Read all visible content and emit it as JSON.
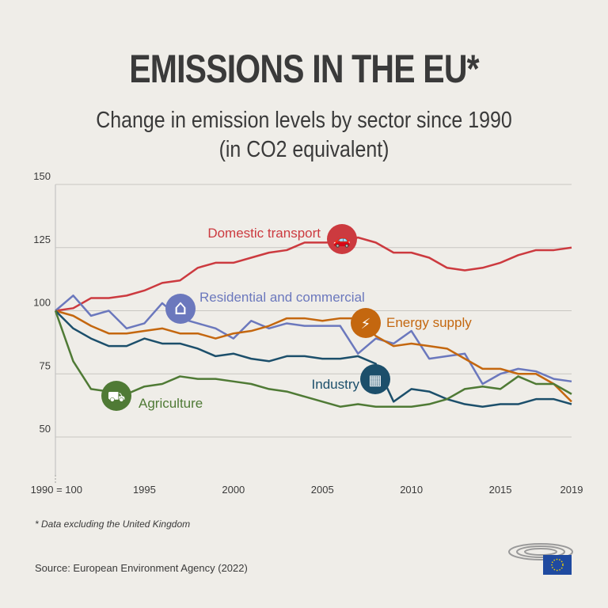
{
  "title": "EMISSIONS IN THE EU*",
  "subtitle_line1": "Change in emission levels by sector since 1990",
  "subtitle_line2": "(in CO2 equivalent)",
  "footnote": "* Data excluding the United Kingdom",
  "source": "Source: European Environment Agency (2022)",
  "chart_data": {
    "type": "line",
    "title": "",
    "xlabel": "",
    "ylabel": "",
    "ylim": [
      50,
      150
    ],
    "xlim": [
      1990,
      2019
    ],
    "grid": true,
    "y_ticks": [
      "150",
      "125",
      "100",
      "75",
      "50"
    ],
    "x_ticks": [
      "1990 = 100",
      "1995",
      "2000",
      "2005",
      "2010",
      "2015",
      "2019"
    ],
    "x": [
      1990,
      1991,
      1992,
      1993,
      1994,
      1995,
      1996,
      1997,
      1998,
      1999,
      2000,
      2001,
      2002,
      2003,
      2004,
      2005,
      2006,
      2007,
      2008,
      2009,
      2010,
      2011,
      2012,
      2013,
      2014,
      2015,
      2016,
      2017,
      2018,
      2019
    ],
    "series": [
      {
        "name": "Domestic transport",
        "color": "#cc3a3f",
        "icon": "car-icon",
        "values": [
          100,
          101,
          105,
          105,
          106,
          108,
          111,
          112,
          117,
          119,
          119,
          121,
          123,
          124,
          127,
          127,
          127,
          129,
          127,
          123,
          123,
          121,
          117,
          116,
          117,
          119,
          122,
          124,
          124,
          125
        ]
      },
      {
        "name": "Residential and commercial",
        "color": "#6b78bd",
        "icon": "house-icon",
        "values": [
          100,
          106,
          98,
          100,
          93,
          95,
          103,
          97,
          95,
          93,
          89,
          96,
          93,
          95,
          94,
          94,
          94,
          83,
          89,
          87,
          92,
          81,
          82,
          83,
          71,
          75,
          77,
          76,
          73,
          72
        ]
      },
      {
        "name": "Energy supply",
        "color": "#c4670f",
        "icon": "lightning-icon",
        "values": [
          100,
          98,
          94,
          91,
          91,
          92,
          93,
          91,
          91,
          89,
          91,
          92,
          94,
          97,
          97,
          96,
          97,
          97,
          90,
          86,
          87,
          86,
          85,
          81,
          77,
          77,
          75,
          75,
          71,
          64
        ]
      },
      {
        "name": "Industry",
        "color": "#1c4f6b",
        "icon": "factory-icon",
        "values": [
          100,
          93,
          89,
          86,
          86,
          89,
          87,
          87,
          85,
          82,
          83,
          81,
          80,
          82,
          82,
          81,
          81,
          82,
          79,
          64,
          69,
          68,
          65,
          63,
          62,
          63,
          63,
          65,
          65,
          63
        ]
      },
      {
        "name": "Agriculture",
        "color": "#4f7a35",
        "icon": "tractor-icon",
        "values": [
          100,
          80,
          69,
          68,
          67,
          70,
          71,
          74,
          73,
          73,
          72,
          71,
          69,
          68,
          66,
          64,
          62,
          63,
          62,
          62,
          62,
          63,
          65,
          69,
          70,
          69,
          74,
          71,
          71,
          67
        ]
      }
    ]
  }
}
